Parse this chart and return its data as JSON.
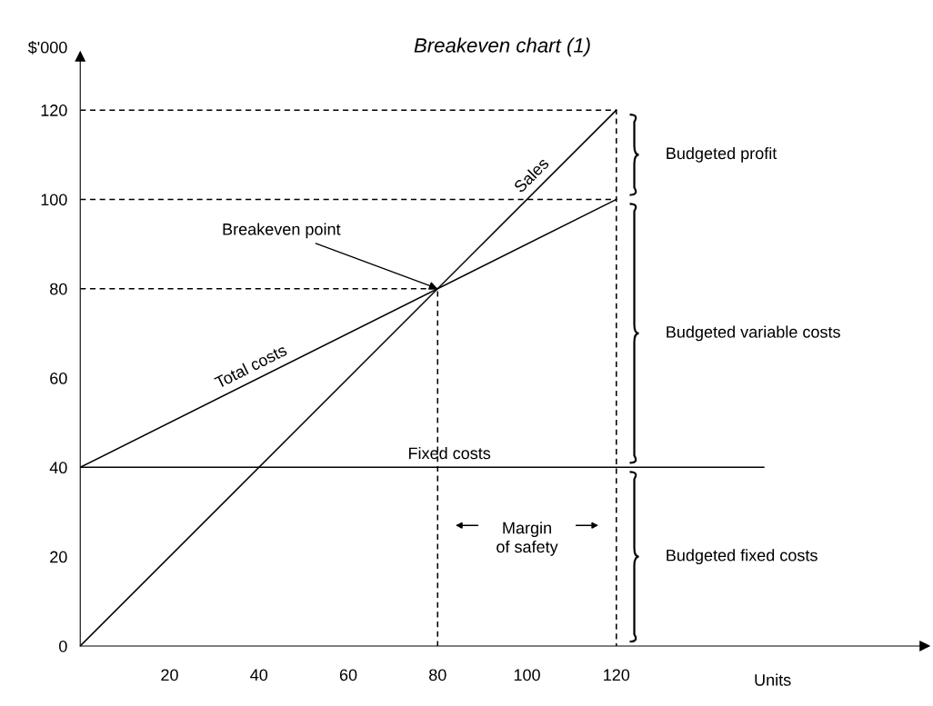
{
  "chart_data": {
    "type": "line",
    "title": "Breakeven chart (1)",
    "xlabel": "Units",
    "ylabel": "$'000",
    "xlim": [
      0,
      189
    ],
    "ylim": [
      0,
      132
    ],
    "xticks": [
      20,
      40,
      60,
      80,
      100,
      120
    ],
    "yticks": [
      0,
      20,
      40,
      60,
      80,
      100,
      120
    ],
    "grid": false,
    "legend": false,
    "marker": "none",
    "series": [
      {
        "name": "Sales",
        "color": "#000000",
        "x": [
          0,
          120
        ],
        "values": [
          0,
          120
        ],
        "line_style": "solid"
      },
      {
        "name": "Total costs",
        "color": "#000000",
        "x": [
          0,
          120
        ],
        "values": [
          40,
          100
        ],
        "line_style": "solid"
      },
      {
        "name": "Fixed costs",
        "color": "#000000",
        "x": [
          0,
          153
        ],
        "values": [
          40,
          40
        ],
        "line_style": "solid"
      },
      {
        "color": "#000000",
        "x": [
          0,
          120,
          120
        ],
        "values": [
          120,
          120,
          0
        ],
        "line_style": "dashed"
      },
      {
        "color": "#000000",
        "x": [
          0,
          120
        ],
        "values": [
          100,
          100
        ],
        "line_style": "dashed"
      },
      {
        "color": "#000000",
        "x": [
          0,
          80,
          80
        ],
        "values": [
          80,
          80,
          0
        ],
        "line_style": "dashed"
      }
    ],
    "annotations": [
      {
        "text": "Breakeven point",
        "x": 80,
        "y": 80
      },
      "Margin\nof safety",
      "Budgeted profit",
      "Budgeted variable costs",
      "Budgeted fixed costs"
    ]
  }
}
